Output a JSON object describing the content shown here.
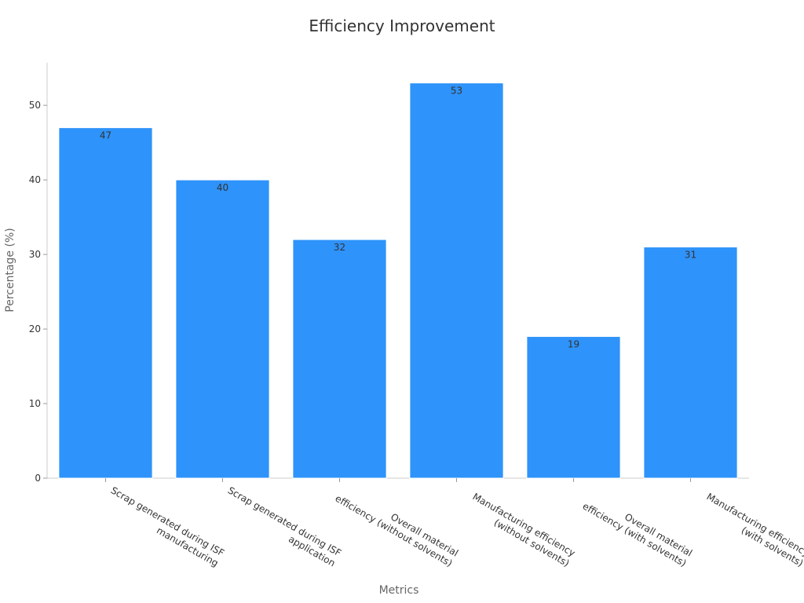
{
  "chart_data": {
    "type": "bar",
    "title": "Efficiency Improvement",
    "xlabel": "Metrics",
    "ylabel": "Percentage (%)",
    "categories": [
      [
        "Scrap generated during ISF",
        "manufacturing"
      ],
      [
        "Scrap generated during ISF",
        "application"
      ],
      [
        "Overall material",
        "efficiency (without solvents)"
      ],
      [
        "Manufacturing efficiency",
        "(without solvents)"
      ],
      [
        "Overall material",
        "efficiency (with solvents)"
      ],
      [
        "Manufacturing efficiency",
        "(with solvents)"
      ]
    ],
    "values": [
      47,
      40,
      32,
      53,
      19,
      31
    ],
    "ylim": [
      0,
      55.7
    ],
    "yticks": [
      0,
      10,
      20,
      30,
      40,
      50
    ],
    "bar_color": "#2e93fa",
    "grid": false,
    "legend": "none"
  }
}
